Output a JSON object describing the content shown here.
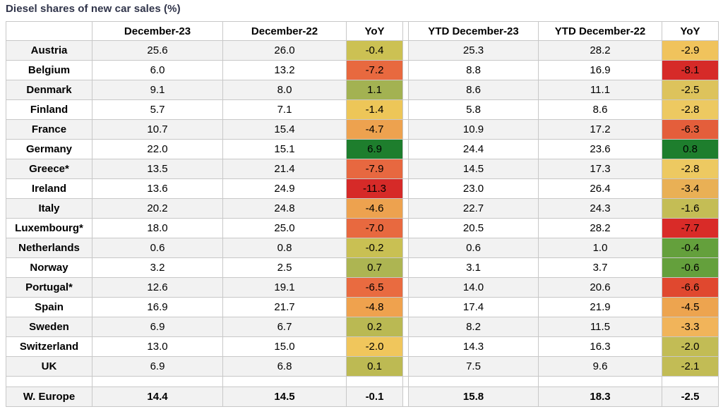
{
  "title": "Diesel shares of new car sales (%)",
  "chart_data": {
    "type": "table",
    "title": "Diesel shares of new car sales (%)",
    "columns": [
      "",
      "December-23",
      "December-22",
      "YoY",
      "YTD December-23",
      "YTD December-22",
      "YoY"
    ],
    "rows": [
      {
        "country": "Austria",
        "values": [
          25.6,
          26.0,
          -0.4,
          25.3,
          28.2,
          -2.9
        ],
        "yoy_colors": [
          "#ccc153",
          "#f0c35c"
        ]
      },
      {
        "country": "Belgium",
        "values": [
          6.0,
          13.2,
          -7.2,
          8.8,
          16.9,
          -8.1
        ],
        "yoy_colors": [
          "#e8693f",
          "#d62a28"
        ]
      },
      {
        "country": "Denmark",
        "values": [
          9.1,
          8.0,
          1.1,
          8.6,
          11.1,
          -2.5
        ],
        "yoy_colors": [
          "#a3b252",
          "#ddc35c"
        ]
      },
      {
        "country": "Finland",
        "values": [
          5.7,
          7.1,
          -1.4,
          5.8,
          8.6,
          -2.8
        ],
        "yoy_colors": [
          "#edc658",
          "#edc961"
        ]
      },
      {
        "country": "France",
        "values": [
          10.7,
          15.4,
          -4.7,
          10.9,
          17.2,
          -6.3
        ],
        "yoy_colors": [
          "#eda24f",
          "#e45e3b"
        ]
      },
      {
        "country": "Germany",
        "values": [
          22.0,
          15.1,
          6.9,
          24.4,
          23.6,
          0.8
        ],
        "yoy_colors": [
          "#1e7e2d",
          "#1e7e2d"
        ]
      },
      {
        "country": "Greece*",
        "values": [
          13.5,
          21.4,
          -7.9,
          14.5,
          17.3,
          -2.8
        ],
        "yoy_colors": [
          "#e76840",
          "#edc961"
        ]
      },
      {
        "country": "Ireland",
        "values": [
          13.6,
          24.9,
          -11.3,
          23.0,
          26.4,
          -3.4
        ],
        "yoy_colors": [
          "#d62a28",
          "#e9b055"
        ]
      },
      {
        "country": "Italy",
        "values": [
          20.2,
          24.8,
          -4.6,
          22.7,
          24.3,
          -1.6
        ],
        "yoy_colors": [
          "#eda24f",
          "#c4bd55"
        ]
      },
      {
        "country": "Luxembourg*",
        "values": [
          18.0,
          25.0,
          -7.0,
          20.5,
          28.2,
          -7.7
        ],
        "yoy_colors": [
          "#e8693f",
          "#d92b28"
        ]
      },
      {
        "country": "Netherlands",
        "values": [
          0.6,
          0.8,
          -0.2,
          0.6,
          1.0,
          -0.4
        ],
        "yoy_colors": [
          "#c9c053",
          "#64a03c"
        ]
      },
      {
        "country": "Norway",
        "values": [
          3.2,
          2.5,
          0.7,
          3.1,
          3.7,
          -0.6
        ],
        "yoy_colors": [
          "#adb552",
          "#64a03c"
        ]
      },
      {
        "country": "Portugal*",
        "values": [
          12.6,
          19.1,
          -6.5,
          14.0,
          20.6,
          -6.6
        ],
        "yoy_colors": [
          "#e96b40",
          "#e0482f"
        ]
      },
      {
        "country": "Spain",
        "values": [
          16.9,
          21.7,
          -4.8,
          17.4,
          21.9,
          -4.5
        ],
        "yoy_colors": [
          "#efa24e",
          "#eda44f"
        ]
      },
      {
        "country": "Sweden",
        "values": [
          6.9,
          6.7,
          0.2,
          8.2,
          11.5,
          -3.3
        ],
        "yoy_colors": [
          "#bab953",
          "#f1b45a"
        ]
      },
      {
        "country": "Switzerland",
        "values": [
          13.0,
          15.0,
          -2.0,
          14.3,
          16.3,
          -2.0
        ],
        "yoy_colors": [
          "#f0c65c",
          "#c2bc55"
        ]
      },
      {
        "country": "UK",
        "values": [
          6.9,
          6.8,
          0.1,
          7.5,
          9.6,
          -2.1
        ],
        "yoy_colors": [
          "#bdba53",
          "#c2bc55"
        ]
      }
    ],
    "summary_row": {
      "country": "W. Europe",
      "values": [
        14.4,
        14.5,
        -0.1,
        15.8,
        18.3,
        -2.5
      ],
      "yoy_colors": [
        null,
        null
      ]
    },
    "layout": {
      "stripe_color": "#f2f2f2",
      "border_color": "#c8c8c8",
      "title_color": "#30344a",
      "yoy_columns_are_color_scaled": true
    }
  }
}
